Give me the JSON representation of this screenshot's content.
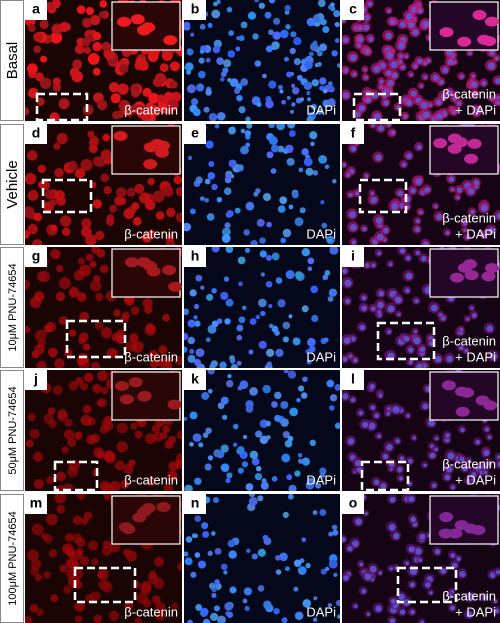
{
  "rows": [
    {
      "label": "Basal",
      "panels": [
        {
          "letter": "a",
          "caption": [
            "β-catenin"
          ]
        },
        {
          "letter": "b",
          "caption": [
            "DAPi"
          ]
        },
        {
          "letter": "c",
          "caption": [
            "β-catenin",
            "+ DAPi"
          ]
        }
      ]
    },
    {
      "label": "Vehicle",
      "panels": [
        {
          "letter": "d",
          "caption": [
            "β-catenin"
          ]
        },
        {
          "letter": "e",
          "caption": [
            "DAPi"
          ]
        },
        {
          "letter": "f",
          "caption": [
            "β-catenin",
            "+ DAPi"
          ]
        }
      ]
    },
    {
      "label": "10μM PNU-74654",
      "panels": [
        {
          "letter": "g",
          "caption": [
            "β-catenin"
          ]
        },
        {
          "letter": "h",
          "caption": [
            "DAPi"
          ]
        },
        {
          "letter": "i",
          "caption": [
            "β-catenin",
            "+ DAPi"
          ]
        }
      ]
    },
    {
      "label": "50μM PNU-74654",
      "panels": [
        {
          "letter": "j",
          "caption": [
            "β-catenin"
          ]
        },
        {
          "letter": "k",
          "caption": [
            "DAPi"
          ]
        },
        {
          "letter": "l",
          "caption": [
            "β-catenin",
            "+ DAPi"
          ]
        }
      ]
    },
    {
      "label": "100μM PNU-74654",
      "panels": [
        {
          "letter": "m",
          "caption": [
            "β-catenin"
          ]
        },
        {
          "letter": "n",
          "caption": [
            "DAPi"
          ]
        },
        {
          "letter": "o",
          "caption": [
            "β-catenin",
            "+ DAPi"
          ]
        }
      ]
    }
  ]
}
